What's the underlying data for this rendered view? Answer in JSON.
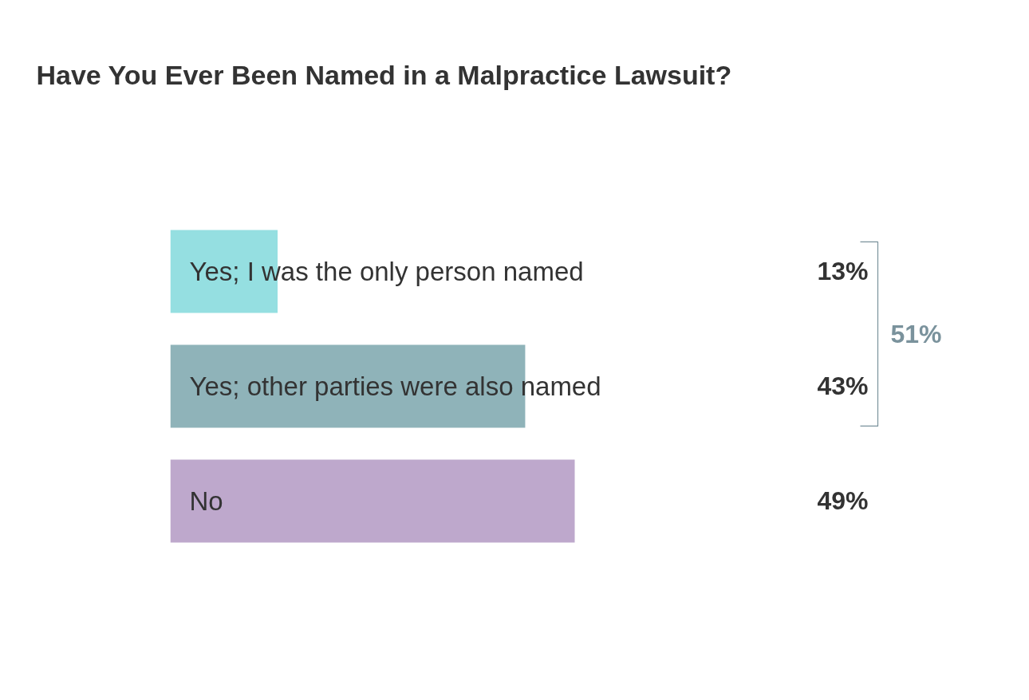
{
  "chart_data": {
    "type": "bar",
    "orientation": "horizontal",
    "title": "Have You Ever Been Named in a Malpractice Lawsuit?",
    "categories": [
      "Yes; I was the only person named",
      "Yes; other parties were also named",
      "No"
    ],
    "values": [
      13,
      43,
      49
    ],
    "colors": [
      "#95dfe1",
      "#8fb3b9",
      "#bea8cc"
    ],
    "value_labels": [
      "13%",
      "43%",
      "49%"
    ],
    "annotations": [
      "51%"
    ],
    "grid": false
  }
}
